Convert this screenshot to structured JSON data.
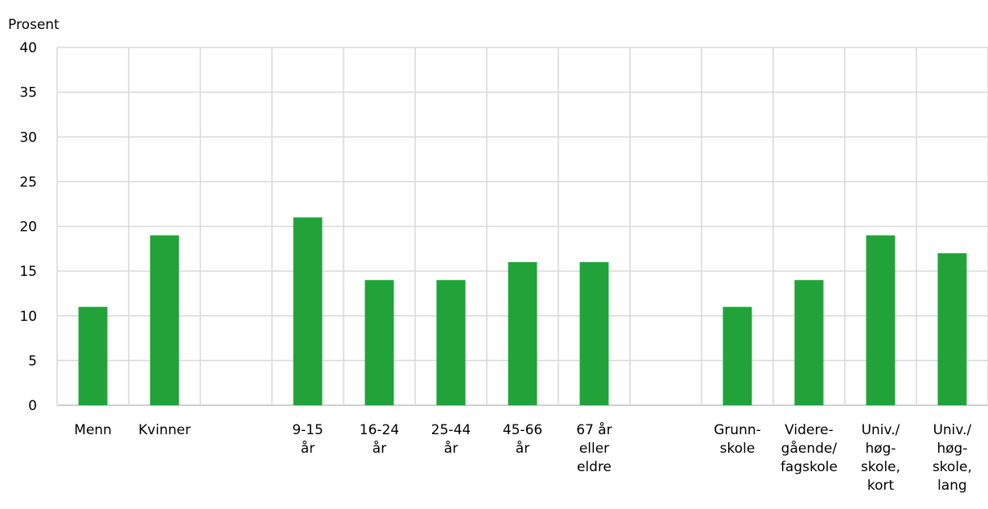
{
  "chart_data": {
    "type": "bar",
    "ylabel": "Prosent",
    "ylim": [
      0,
      40
    ],
    "yticks": [
      "0",
      "5",
      "10",
      "15",
      "20",
      "25",
      "30",
      "35",
      "40"
    ],
    "grid": true,
    "legend": "none",
    "bar_color": "#22a33a",
    "grid_color": "#d9d9d9",
    "categories": [
      {
        "label": [
          "Menn"
        ],
        "value": 11
      },
      {
        "label": [
          "Kvinner"
        ],
        "value": 19
      },
      {
        "label": [],
        "value": null
      },
      {
        "label": [
          "9-15",
          "år"
        ],
        "value": 21
      },
      {
        "label": [
          "16-24",
          "år"
        ],
        "value": 14
      },
      {
        "label": [
          "25-44",
          "år"
        ],
        "value": 14
      },
      {
        "label": [
          "45-66",
          "år"
        ],
        "value": 16
      },
      {
        "label": [
          "67 år",
          "eller",
          "eldre"
        ],
        "value": 16
      },
      {
        "label": [],
        "value": null
      },
      {
        "label": [
          "Grunn-",
          "skole"
        ],
        "value": 11
      },
      {
        "label": [
          "Videre-",
          "gående/",
          "fagskole"
        ],
        "value": 14
      },
      {
        "label": [
          "Univ./",
          "høg-",
          "skole,",
          "kort"
        ],
        "value": 19
      },
      {
        "label": [
          "Univ./",
          "høg-",
          "skole,",
          "lang"
        ],
        "value": 17
      }
    ]
  }
}
